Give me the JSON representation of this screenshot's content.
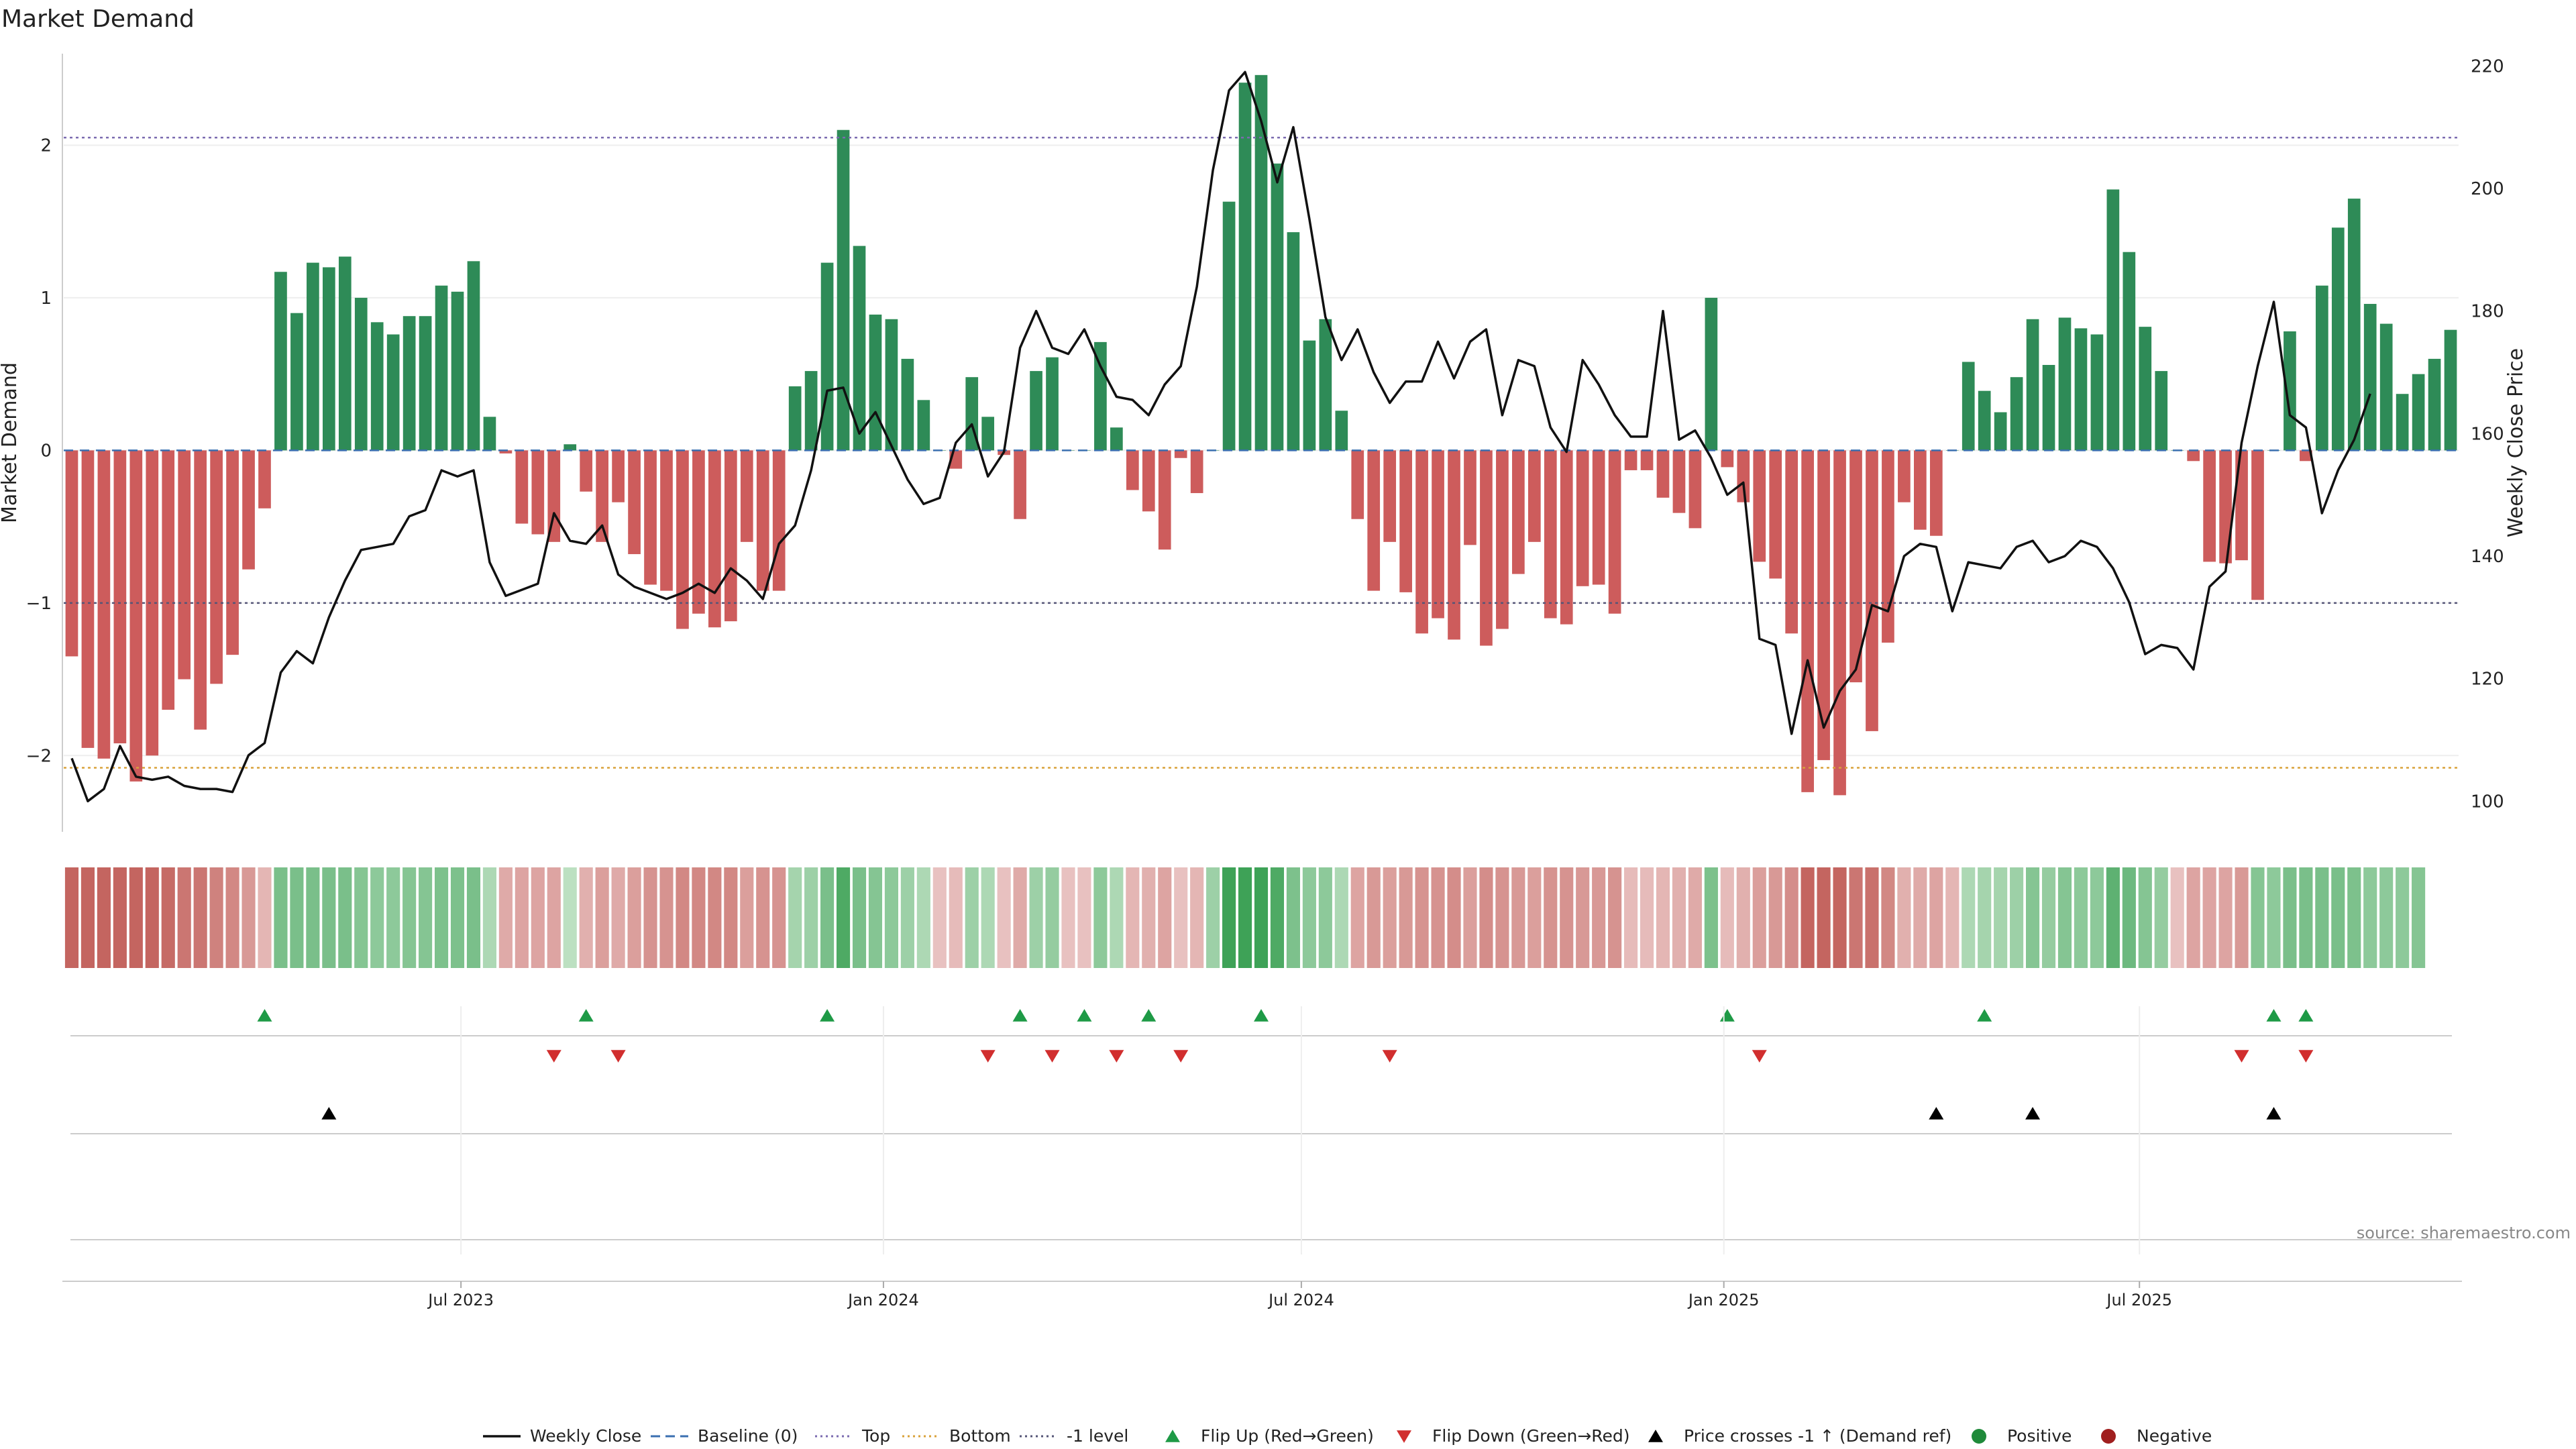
{
  "chart_data": {
    "type": "bar",
    "title": "Market Demand",
    "ylabel_left": "Market Demand",
    "ylabel_right": "Weekly Close Price",
    "ylim_left": [
      -2.5,
      2.6
    ],
    "ylim_right": [
      95,
      222
    ],
    "y_ticks_left": [
      -2,
      -1,
      0,
      1,
      2
    ],
    "y_ticks_left_labels": [
      "−2",
      "−1",
      "0",
      "1",
      "2"
    ],
    "y_ticks_right": [
      100,
      120,
      140,
      160,
      180,
      200,
      220
    ],
    "x_start": "2023-01-09",
    "x_step_days": 7,
    "x_ticks": [
      {
        "label": "Jul 2023",
        "date": "2023-07-01"
      },
      {
        "label": "Jan 2024",
        "date": "2024-01-01"
      },
      {
        "label": "Jul 2024",
        "date": "2024-07-01"
      },
      {
        "label": "Jan 2025",
        "date": "2025-01-01"
      },
      {
        "label": "Jul 2025",
        "date": "2025-07-01"
      }
    ],
    "reference_lines": {
      "top": 2.05,
      "bottom": -2.08,
      "minus_one": -1.0,
      "baseline": 0
    },
    "demand": [
      -1.35,
      -1.95,
      -2.02,
      -1.92,
      -2.17,
      -2.0,
      -1.7,
      -1.5,
      -1.83,
      -1.53,
      -1.34,
      -0.78,
      -0.38,
      1.17,
      0.9,
      1.23,
      1.2,
      1.27,
      1.0,
      0.84,
      0.76,
      0.88,
      0.88,
      1.08,
      1.04,
      1.24,
      0.22,
      -0.02,
      -0.48,
      -0.55,
      -0.6,
      0.04,
      -0.27,
      -0.6,
      -0.34,
      -0.68,
      -0.88,
      -0.92,
      -1.17,
      -1.07,
      -1.16,
      -1.12,
      -0.6,
      -0.92,
      -0.92,
      0.42,
      0.52,
      1.23,
      2.1,
      1.34,
      0.89,
      0.86,
      0.6,
      0.33,
      0.0,
      -0.12,
      0.48,
      0.22,
      -0.03,
      -0.45,
      0.52,
      0.61,
      0.0,
      0.0,
      0.71,
      0.15,
      -0.26,
      -0.4,
      -0.65,
      -0.05,
      -0.28,
      0.0,
      1.63,
      2.41,
      2.46,
      1.88,
      1.43,
      0.72,
      0.86,
      0.26,
      -0.45,
      -0.92,
      -0.6,
      -0.93,
      -1.2,
      -1.1,
      -1.24,
      -0.62,
      -1.28,
      -1.17,
      -0.81,
      -0.6,
      -1.1,
      -1.14,
      -0.89,
      -0.88,
      -1.07,
      -0.13,
      -0.13,
      -0.31,
      -0.41,
      -0.51,
      1.0,
      -0.11,
      -0.34,
      -0.73,
      -0.84,
      -1.2,
      -2.24,
      -2.03,
      -2.26,
      -1.52,
      -1.84,
      -1.26,
      -0.34,
      -0.52,
      -0.56,
      0.0,
      0.58,
      0.39,
      0.25,
      0.48,
      0.86,
      0.56,
      0.87,
      0.8,
      0.76,
      1.71,
      1.3,
      0.81,
      0.52,
      0.0,
      -0.07,
      -0.73,
      -0.74,
      -0.72,
      -0.98,
      0.0,
      0.78,
      -0.07,
      1.08,
      1.46,
      1.65,
      0.96,
      0.83,
      0.37,
      0.5,
      0.6,
      0.79
    ],
    "weekly_close": [
      107,
      100,
      102,
      109,
      104,
      103.5,
      104,
      102.5,
      102,
      102,
      101.5,
      107.5,
      109.5,
      121,
      124.5,
      122.5,
      130,
      136,
      141,
      141.5,
      142,
      146.5,
      147.5,
      154,
      153,
      154,
      139,
      133.5,
      134.5,
      135.5,
      147,
      142.5,
      142,
      145,
      137,
      135,
      134,
      133,
      134,
      135.5,
      134,
      138,
      136,
      133,
      142,
      145,
      154,
      167,
      167.5,
      160,
      163.5,
      158,
      152.5,
      148.5,
      149.5,
      158.5,
      161.5,
      153,
      157,
      174,
      180,
      174,
      173,
      177,
      171,
      166,
      165.5,
      163,
      168,
      171,
      184,
      203,
      216,
      219,
      211,
      201,
      210,
      195,
      179,
      172,
      177,
      170,
      165,
      168.5,
      168.5,
      175,
      169,
      175,
      177,
      163,
      172,
      171,
      161,
      157,
      172,
      168,
      163,
      159.5,
      159.5,
      180,
      159,
      160.5,
      156,
      150,
      152,
      126.5,
      125.5,
      111,
      123,
      112,
      118,
      121.5,
      132,
      131,
      140,
      142,
      141.5,
      131,
      139,
      138.5,
      138,
      141.5,
      142.5,
      139,
      140,
      142.5,
      141.5,
      138,
      132.5,
      124,
      125.5,
      125,
      121.5,
      135,
      137.5,
      158.5,
      171,
      181.5,
      163,
      161,
      147,
      154,
      159,
      166.5
    ],
    "color_strip": [
      -1,
      -1,
      -1,
      -1,
      -1,
      -1,
      -0.95,
      -0.85,
      -0.85,
      -0.75,
      -0.7,
      -0.55,
      -0.3,
      0.62,
      0.62,
      0.62,
      0.62,
      0.62,
      0.55,
      0.5,
      0.5,
      0.55,
      0.55,
      0.6,
      0.6,
      0.62,
      0.3,
      -0.4,
      -0.45,
      -0.45,
      -0.45,
      0.2,
      -0.35,
      -0.5,
      -0.4,
      -0.5,
      -0.6,
      -0.6,
      -0.7,
      -0.7,
      -0.7,
      -0.7,
      -0.5,
      -0.6,
      -0.6,
      0.35,
      0.4,
      0.62,
      0.9,
      0.62,
      0.55,
      0.5,
      0.4,
      0.3,
      -0.2,
      -0.25,
      0.4,
      0.3,
      -0.2,
      -0.4,
      0.4,
      0.45,
      -0.2,
      -0.2,
      0.5,
      0.3,
      -0.3,
      -0.35,
      -0.45,
      -0.2,
      -0.3,
      0.4,
      1,
      1,
      1,
      0.9,
      0.6,
      0.5,
      0.5,
      0.3,
      -0.45,
      -0.55,
      -0.5,
      -0.55,
      -0.6,
      -0.6,
      -0.65,
      -0.5,
      -0.65,
      -0.6,
      -0.55,
      -0.5,
      -0.6,
      -0.6,
      -0.55,
      -0.55,
      -0.6,
      -0.25,
      -0.25,
      -0.3,
      -0.35,
      -0.4,
      0.6,
      -0.25,
      -0.35,
      -0.5,
      -0.55,
      -0.65,
      -1,
      -1,
      -1,
      -0.85,
      -0.9,
      -0.7,
      -0.35,
      -0.4,
      -0.45,
      -0.3,
      0.3,
      0.35,
      0.35,
      0.4,
      0.55,
      0.45,
      0.55,
      0.5,
      0.5,
      0.8,
      0.7,
      0.55,
      0.45,
      -0.2,
      -0.45,
      -0.45,
      -0.45,
      -0.55,
      0.55,
      0.5,
      0.62,
      0.62,
      0.62,
      0.62,
      0.6,
      0.5,
      0.5,
      0.5,
      0.55
    ],
    "flip_up": [
      "2023-04-03",
      "2023-08-21",
      "2023-12-04",
      "2024-02-26",
      "2024-03-25",
      "2024-04-22",
      "2024-06-10",
      "2024-12-30",
      "2025-04-21",
      "2025-08-25",
      "2025-09-08"
    ],
    "flip_down": [
      "2023-08-07",
      "2023-09-04",
      "2024-02-12",
      "2024-03-11",
      "2024-04-08",
      "2024-05-06",
      "2024-08-05",
      "2025-01-13",
      "2025-08-11",
      "2025-09-08"
    ],
    "price_cross": [
      "2023-05-01",
      "2025-03-31",
      "2025-05-12",
      "2025-08-25"
    ],
    "legend": [
      {
        "label": "Weekly Close",
        "kind": "line",
        "color": "#111111"
      },
      {
        "label": "Baseline (0)",
        "kind": "dash",
        "color": "#3a6fb0"
      },
      {
        "label": "Top",
        "kind": "dot",
        "color": "#7b6bb0"
      },
      {
        "label": "Bottom",
        "kind": "dot",
        "color": "#d9a23a"
      },
      {
        "label": "-1 level",
        "kind": "dot",
        "color": "#555577"
      },
      {
        "label": "Flip Up (Red→Green)",
        "kind": "tri-up",
        "color": "#1e9a46"
      },
      {
        "label": "Flip Down (Green→Red)",
        "kind": "tri-down",
        "color": "#d12e2e"
      },
      {
        "label": "Price crosses -1 ↑ (Demand ref)",
        "kind": "tri-up",
        "color": "#000000"
      },
      {
        "label": "Positive",
        "kind": "circle",
        "color": "#1f8a3a"
      },
      {
        "label": "Negative",
        "kind": "circle",
        "color": "#a01f1f"
      }
    ],
    "source": "source: sharemaestro.com",
    "colors": {
      "positive_bar": "#2e8b57",
      "negative_bar": "#cd5c5c",
      "price_line": "#111111",
      "grid": "#dddddd"
    }
  }
}
